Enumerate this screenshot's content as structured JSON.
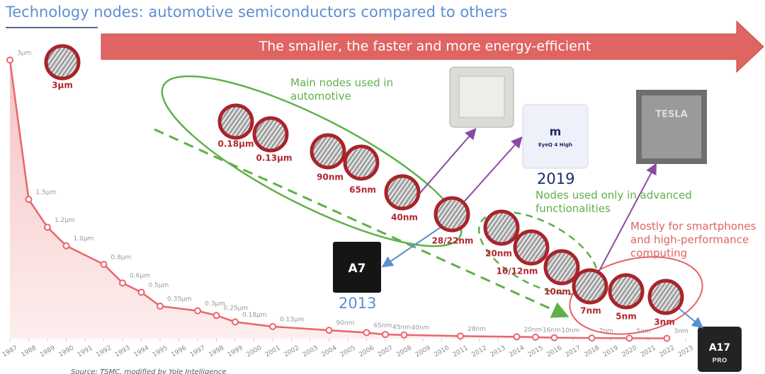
{
  "chart_data": {
    "type": "line",
    "title": "Technology nodes: automotive semiconductors compared to others",
    "banner": "The smaller, the faster and more energy-efficient",
    "x": [
      1987,
      1988,
      1989,
      1990,
      1992,
      1993,
      1994,
      1995,
      1997,
      1998,
      1999,
      2001,
      2004,
      2006,
      2007,
      2008,
      2011,
      2014,
      2015,
      2016,
      2018,
      2020,
      2022
    ],
    "values": [
      3,
      1.5,
      1.2,
      1.0,
      0.8,
      0.6,
      0.5,
      0.35,
      0.3,
      0.25,
      0.18,
      0.13,
      0.09,
      0.065,
      0.045,
      0.04,
      0.028,
      0.02,
      0.016,
      0.01,
      0.007,
      0.005,
      0.003
    ],
    "value_labels": [
      "3µm",
      "1.5µm",
      "1.2µm",
      "1.0µm",
      "0.8µm",
      "0.6µm",
      "0.5µm",
      "0.35µm",
      "0.3µm",
      "0.25µm",
      "0.18µm",
      "0.13µm",
      "90nm",
      "65nm",
      "45nm",
      "40nm",
      "28nm",
      "20nm",
      "16nm",
      "10nm",
      "7nm",
      "5nm",
      "3nm"
    ],
    "color": "#e8666b",
    "xlim": [
      1987,
      2023
    ],
    "xticks": [
      1987,
      1988,
      1989,
      1990,
      1991,
      1992,
      1993,
      1994,
      1995,
      1996,
      1997,
      1998,
      1999,
      2000,
      2001,
      2002,
      2003,
      2004,
      2005,
      2006,
      2007,
      2008,
      2009,
      2010,
      2011,
      2012,
      2013,
      2014,
      2015,
      2016,
      2017,
      2018,
      2019,
      2020,
      2021,
      2022,
      2023
    ],
    "ylim": [
      0,
      3
    ],
    "annotations": [
      "Main nodes used in automotive",
      "Nodes used only in advanced functionalities",
      "Mostly for smartphones and high-performance computing",
      "2019",
      "2013"
    ],
    "badges": [
      "3µm",
      "0.18µm",
      "0.13µm",
      "90nm",
      "65nm",
      "40nm",
      "28/22nm",
      "20nm",
      "16/12nm",
      "10nm",
      "7nm",
      "5nm",
      "3nm"
    ],
    "chips": [
      "A7",
      "EyeQ 4 High",
      "TESLA",
      "A17",
      "PRO"
    ],
    "source": "Source: TSMC, modified by Yole Intelligence"
  }
}
